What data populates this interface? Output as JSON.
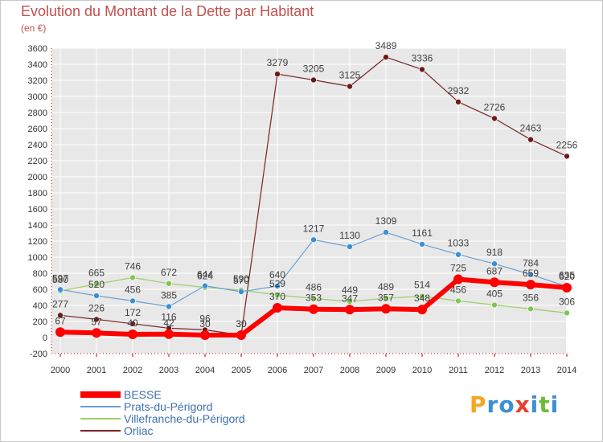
{
  "title": "Evolution du Montant de la Dette par Habitant",
  "unit_label": "(en €)",
  "logo": {
    "letters": [
      "P",
      "r",
      "o",
      "x",
      "i",
      "t",
      "i"
    ],
    "colors": [
      "#f5a623",
      "#3b8fd6",
      "#3b8fd6",
      "#e8412f",
      "#3b8fd6",
      "#6dbb3a",
      "#3b8fd6"
    ]
  },
  "chart_data": {
    "type": "line",
    "x": [
      "2000",
      "2001",
      "2002",
      "2003",
      "2004",
      "2005",
      "2006",
      "2007",
      "2008",
      "2009",
      "2010",
      "2011",
      "2012",
      "2013",
      "2014"
    ],
    "ylim": [
      -200,
      3600
    ],
    "yticks": [
      -200,
      0,
      200,
      400,
      600,
      800,
      1000,
      1200,
      1400,
      1600,
      1800,
      2000,
      2200,
      2400,
      2600,
      2800,
      3000,
      3200,
      3400,
      3600
    ],
    "grid": true,
    "legend_position": "bottom",
    "series": [
      {
        "name": "BESSE",
        "color": "#ff0000",
        "marker": "#ff0000",
        "width": 6,
        "markerSize": 6,
        "values": [
          67,
          57,
          40,
          42,
          30,
          30,
          370,
          353,
          347,
          357,
          348,
          725,
          687,
          659,
          620
        ],
        "labels": [
          "67",
          "57",
          "40",
          "42",
          "30",
          "30",
          "370",
          "353",
          "347",
          "357",
          "348",
          "725",
          "687",
          "659",
          "620"
        ]
      },
      {
        "name": "Prats-du-Périgord",
        "color": "#6a9fd4",
        "marker": "#3b8fd6",
        "width": 1.2,
        "markerSize": 3.5,
        "values": [
          597,
          520,
          456,
          385,
          644,
          570,
          640,
          1217,
          1130,
          1309,
          1161,
          1033,
          918,
          784,
          635
        ],
        "labels": [
          "597",
          "520",
          "456",
          "385",
          "644",
          "570",
          "640",
          "1217",
          "1130",
          "1309",
          "1161",
          "1033",
          "918",
          "784",
          "635"
        ]
      },
      {
        "name": "Villefranche-du-Périgord",
        "color": "#99d06a",
        "marker": "#7ec850",
        "width": 1.2,
        "markerSize": 3.5,
        "values": [
          580,
          665,
          746,
          672,
          624,
          590,
          529,
          486,
          449,
          489,
          514,
          456,
          405,
          356,
          306
        ],
        "labels": [
          "580",
          "665",
          "746",
          "672",
          "624",
          "590",
          "529",
          "486",
          "449",
          "489",
          "514",
          "456",
          "405",
          "356",
          "306"
        ]
      },
      {
        "name": "Orliac",
        "color": "#7a2424",
        "marker": "#6b1a1a",
        "width": 1.2,
        "markerSize": 3.5,
        "values": [
          277,
          226,
          172,
          116,
          96,
          30,
          3279,
          3205,
          3125,
          3489,
          3336,
          2932,
          2726,
          2463,
          2256
        ],
        "labels": [
          "277",
          "226",
          "172",
          "116",
          "96",
          "30",
          "3279",
          "3205",
          "3125",
          "3489",
          "3336",
          "2932",
          "2726",
          "2463",
          "2256"
        ]
      }
    ]
  }
}
